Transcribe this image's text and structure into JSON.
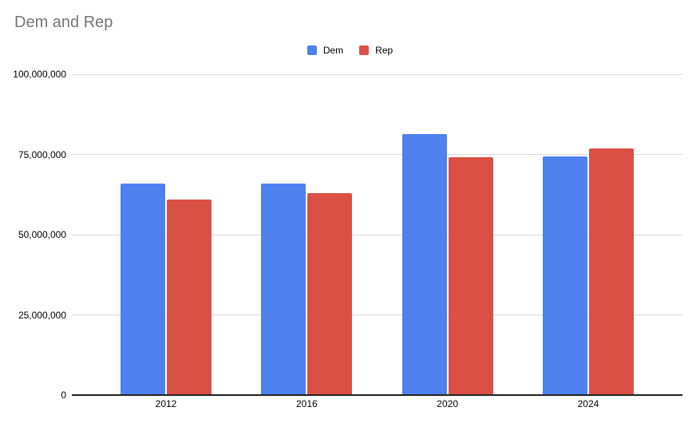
{
  "title": "Dem and Rep",
  "legend": {
    "items": [
      {
        "label": "Dem",
        "color": "#4e81ee"
      },
      {
        "label": "Rep",
        "color": "#db5044"
      }
    ]
  },
  "chart_data": {
    "type": "bar",
    "title": "Dem and Rep",
    "categories": [
      "2012",
      "2016",
      "2020",
      "2024"
    ],
    "series": [
      {
        "name": "Dem",
        "color": "#4e81ee",
        "values": [
          65900000,
          65900000,
          81300000,
          74300000
        ]
      },
      {
        "name": "Rep",
        "color": "#db5044",
        "values": [
          60900000,
          63000000,
          74200000,
          76800000
        ]
      }
    ],
    "xlabel": "",
    "ylabel": "",
    "ylim": [
      0,
      100000000
    ],
    "yticks": [
      {
        "value": 100000000,
        "label": "100,000,000"
      },
      {
        "value": 75000000,
        "label": "75,000,000"
      },
      {
        "value": 50000000,
        "label": "50,000,000"
      },
      {
        "value": 25000000,
        "label": "25,000,000"
      },
      {
        "value": 0,
        "label": "0"
      }
    ],
    "grid": true,
    "legend_position": "top-center"
  },
  "colors": {
    "background": "#ffffff",
    "title_text": "#757575",
    "axis_text": "#000000",
    "gridline": "#d9d9d9",
    "axis_line": "#212121"
  }
}
